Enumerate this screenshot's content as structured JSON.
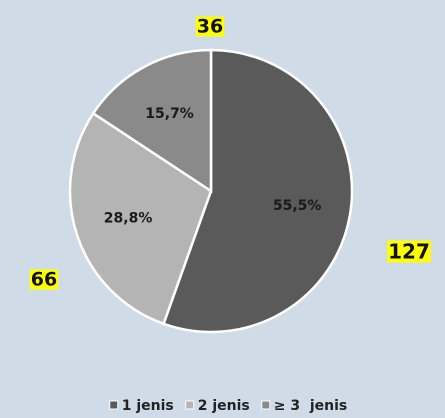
{
  "chart_data": {
    "type": "pie",
    "categories": [
      "1 jenis",
      "2 jenis",
      "≥ 3  jenis"
    ],
    "values": [
      127,
      66,
      36
    ],
    "percentages": [
      {
        "value": 55.5,
        "label": "55,5%"
      },
      {
        "value": 28.8,
        "label": "28,8%"
      },
      {
        "value": 15.7,
        "label": "15,7%"
      }
    ],
    "colors": [
      "#5a5a5a",
      "#b4b4b4",
      "#8a8a8a"
    ],
    "legend": "bottom"
  }
}
